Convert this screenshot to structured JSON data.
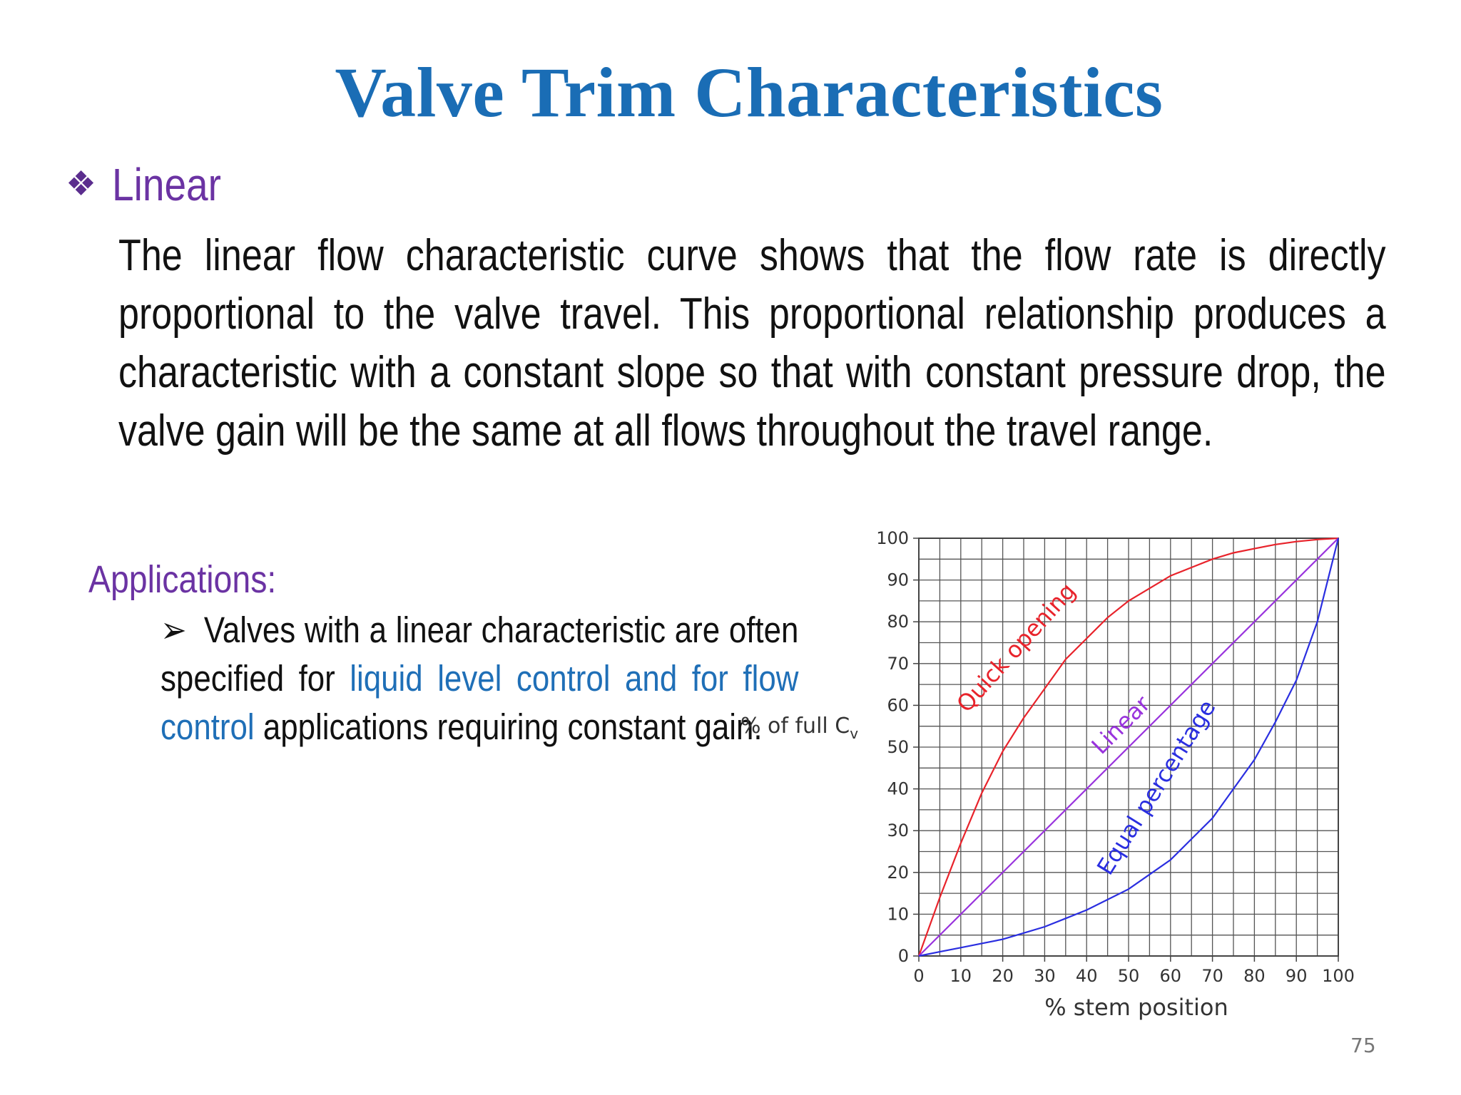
{
  "slide": {
    "title": "Valve Trim Characteristics",
    "bullet_icon": "diamond-cluster-icon",
    "bullet_label": "Linear",
    "paragraph": "The linear flow characteristic curve shows that the flow rate is directly proportional to the valve travel. This proportional relationship produces a characteristic with a constant slope so that with constant pressure drop, the valve gain will be the same at all flows throughout the travel range.",
    "applications": {
      "heading": "Applications:",
      "arrow_icon": "arrow-bullet-icon",
      "text_before": "Valves with a linear characteristic are often specified for ",
      "highlight": "liquid level control and for flow control",
      "text_after": " applications requiring constant gain."
    },
    "page_number": "75"
  },
  "colors": {
    "title": "#1a6db5",
    "accent_purple": "#6b33a3",
    "highlight_blue": "#1f6fb7",
    "quick_opening": "#e8232b",
    "linear": "#9933dd",
    "equal_percentage": "#2a2ee0"
  },
  "chart_data": {
    "type": "line",
    "xlabel": "% stem position",
    "ylabel_main": "% of full C",
    "ylabel_sub": "v",
    "xlim": [
      0,
      100
    ],
    "ylim": [
      0,
      100
    ],
    "grid": true,
    "x_ticks": [
      "0",
      "10",
      "20",
      "30",
      "40",
      "50",
      "60",
      "70",
      "80",
      "90",
      "100"
    ],
    "y_ticks": [
      "0",
      "10",
      "20",
      "30",
      "40",
      "50",
      "60",
      "70",
      "80",
      "90",
      "100"
    ],
    "series": [
      {
        "name": "Quick opening",
        "color": "#e8232b",
        "x": [
          0,
          5,
          10,
          15,
          20,
          25,
          30,
          35,
          40,
          45,
          50,
          55,
          60,
          65,
          70,
          75,
          80,
          85,
          90,
          95,
          100
        ],
        "y": [
          0,
          14,
          27,
          39,
          49,
          57,
          64,
          71,
          76,
          81,
          85,
          88,
          91,
          93,
          95,
          96.5,
          97.5,
          98.5,
          99.2,
          99.7,
          100
        ]
      },
      {
        "name": "Linear",
        "color": "#9933dd",
        "x": [
          0,
          100
        ],
        "y": [
          0,
          100
        ]
      },
      {
        "name": "Equal percentage",
        "color": "#2a2ee0",
        "x": [
          0,
          5,
          10,
          15,
          20,
          25,
          30,
          35,
          40,
          45,
          50,
          55,
          60,
          65,
          70,
          75,
          80,
          85,
          90,
          95,
          100
        ],
        "y": [
          0,
          1,
          2,
          3,
          4,
          5.5,
          7,
          9,
          11,
          13.5,
          16,
          19.5,
          23,
          28,
          33,
          40,
          47,
          56,
          66,
          80,
          100
        ]
      }
    ]
  }
}
